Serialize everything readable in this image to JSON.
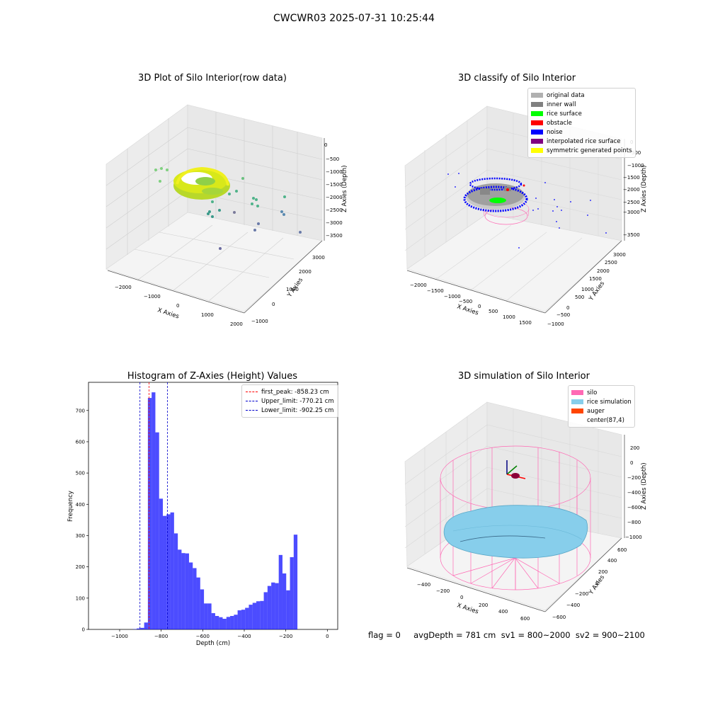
{
  "suptitle": "CWCWR03 2025-07-31 10:25:44",
  "footer": "flag = 0     avgDepth = 781 cm  sv1 = 800~2000  sv2 = 900~2100",
  "panels": {
    "raw": {
      "title": "3D Plot of Silo Interior(row data)",
      "xlabel": "X Axies",
      "ylabel": "Y Axies",
      "zlabel": "Z Axies (Depth)",
      "xticks": [
        "−2000",
        "−1000",
        "0",
        "1000",
        "2000"
      ],
      "yticks": [
        "−1000",
        "0",
        "1000",
        "2000",
        "3000"
      ],
      "zticks": [
        "0",
        "−500",
        "−1000",
        "−1500",
        "−2000",
        "−2500",
        "−3000",
        "−3500"
      ]
    },
    "classify": {
      "title": "3D classify of Silo Interior",
      "xlabel": "X Axies",
      "ylabel": "Y Axies",
      "zlabel": "Z Axies (Depth)",
      "xticks": [
        "−2000",
        "−1500",
        "−1000",
        "−500",
        "0",
        "500",
        "1000",
        "1500"
      ],
      "yticks": [
        "−1000",
        "−500",
        "0",
        "500",
        "1000",
        "1500",
        "2000",
        "2500",
        "3000"
      ],
      "zticks": [
        "0",
        "−500",
        "−1000",
        "−1500",
        "−2000",
        "−2500",
        "−3000",
        "−3500"
      ],
      "legend": [
        {
          "label": "original data",
          "color": "#b0b0b0"
        },
        {
          "label": "inner wall",
          "color": "#808080"
        },
        {
          "label": "rice surface",
          "color": "#00ff00"
        },
        {
          "label": "obstacle",
          "color": "#ff0000"
        },
        {
          "label": "noise",
          "color": "#0000ff"
        },
        {
          "label": "interpolated rice surface",
          "color": "#800080"
        },
        {
          "label": "symmetric generated points",
          "color": "#ffff00"
        }
      ]
    },
    "sim": {
      "title": "3D simulation of Silo Interior",
      "xlabel": "X Axies",
      "ylabel": "Y Axies",
      "zlabel": "Z Axies (Depth)",
      "xticks": [
        "−400",
        "−200",
        "0",
        "200",
        "400",
        "600"
      ],
      "yticks": [
        "−600",
        "−400",
        "−200",
        "0",
        "200",
        "400",
        "600"
      ],
      "zticks": [
        "200",
        "0",
        "−200",
        "−400",
        "−600",
        "−800",
        "−1000"
      ],
      "legend": [
        {
          "label": "silo",
          "color": "#ff69b4"
        },
        {
          "label": "rice simulation",
          "color": "#87ceeb"
        },
        {
          "label": "auger",
          "color": "#ff4500"
        },
        {
          "label": "center(87,4)",
          "color": "none"
        }
      ]
    }
  },
  "chart_data": {
    "type": "bar",
    "title": "Histogram of Z-Axies (Height) Values",
    "xlabel": "Depth (cm)",
    "ylabel": "Frequency",
    "xlim": [
      -1150,
      50
    ],
    "ylim": [
      0,
      790
    ],
    "xticks": [
      -1000,
      -800,
      -600,
      -400,
      -200,
      0
    ],
    "yticks": [
      0,
      100,
      200,
      300,
      400,
      500,
      600,
      700
    ],
    "bin_width": 18,
    "bin_start": -1080,
    "values": [
      0,
      0,
      0,
      0,
      0,
      0,
      0,
      0,
      1,
      3,
      5,
      22,
      740,
      758,
      630,
      418,
      363,
      368,
      374,
      307,
      255,
      244,
      243,
      214,
      196,
      166,
      128,
      83,
      83,
      52,
      43,
      39,
      34,
      40,
      43,
      47,
      61,
      63,
      69,
      79,
      85,
      90,
      91,
      119,
      139,
      150,
      148,
      238,
      179,
      125,
      231,
      303
    ],
    "color": "#0000ff",
    "lines": [
      {
        "label": "first_peak: -858.23 cm",
        "x": -858.23,
        "color": "#ff0000"
      },
      {
        "label": "Upper_limit: -770.21 cm",
        "x": -770.21,
        "color": "#0000cc"
      },
      {
        "label": "Lower_limit: -902.25 cm",
        "x": -902.25,
        "color": "#0000cc"
      }
    ]
  }
}
